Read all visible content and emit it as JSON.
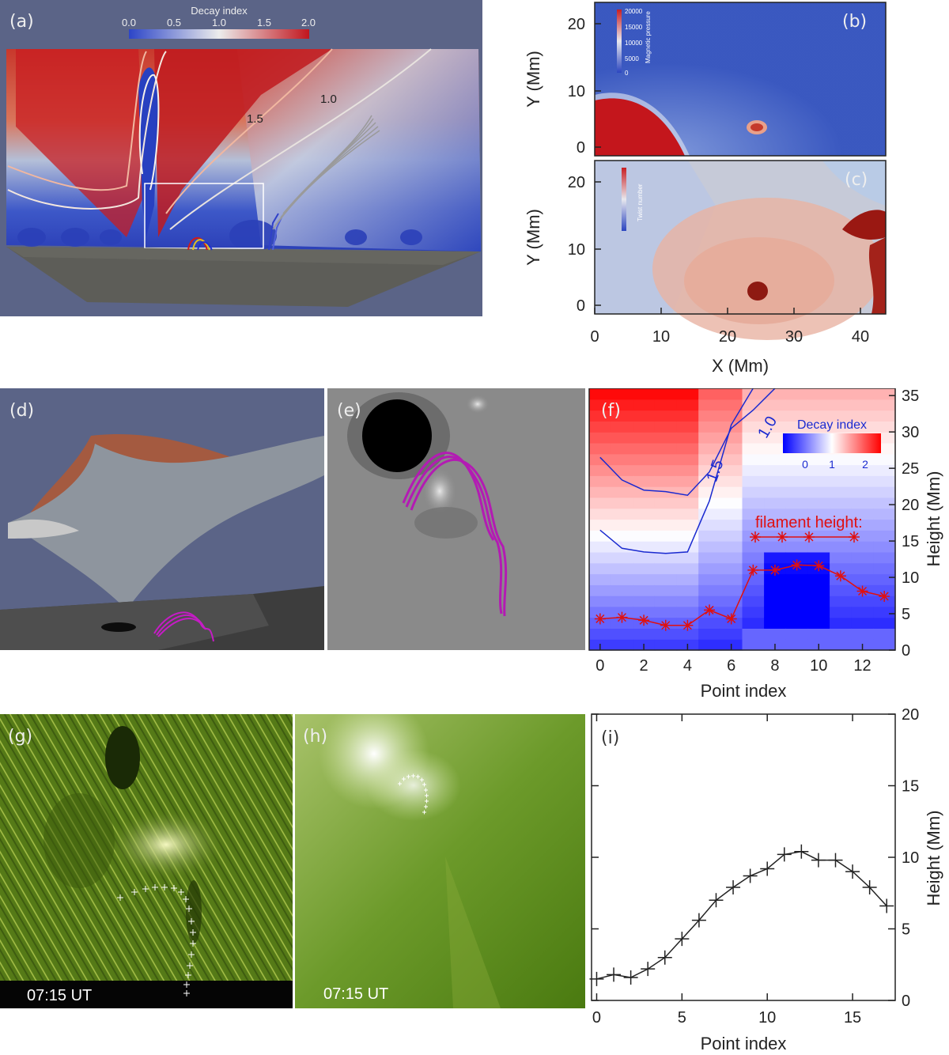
{
  "panels": {
    "a": {
      "label": "(a)",
      "colorbar_title": "Decay index",
      "colorbar_ticks": [
        "0.0",
        "0.5",
        "1.0",
        "1.5",
        "2.0"
      ],
      "contour_labels": [
        "1.5",
        "1.0"
      ]
    },
    "b": {
      "label": "(b)",
      "colorbar_title": "Magnetic pressure",
      "colorbar_ticks": [
        "20000",
        "15000",
        "10000",
        "5000",
        "0"
      ]
    },
    "c": {
      "label": "(c)",
      "colorbar_title": "Twist number"
    },
    "bc_axes": {
      "xlabel": "X (Mm)",
      "ylabel": "Y (Mm)",
      "xticks": [
        "0",
        "10",
        "20",
        "30",
        "40"
      ],
      "yticks_b": [
        "0",
        "10",
        "20"
      ],
      "yticks_c": [
        "0",
        "10",
        "20"
      ]
    },
    "d": {
      "label": "(d)"
    },
    "e": {
      "label": "(e)"
    },
    "f": {
      "label": "(f)",
      "colorbar_title": "Decay index",
      "colorbar_ticks": [
        "0",
        "1",
        "2"
      ],
      "legend_text": "filament height:",
      "contour_labels": [
        "1.5",
        "1.0"
      ],
      "xlabel": "Point index",
      "ylabel": "Height (Mm)"
    },
    "g": {
      "label": "(g)",
      "timestamp": "07:15 UT"
    },
    "h": {
      "label": "(h)",
      "timestamp": "07:15 UT"
    },
    "i": {
      "label": "(i)",
      "xlabel": "Point index",
      "ylabel": "Height (Mm)"
    }
  },
  "chart_data": [
    {
      "panel": "f",
      "type": "line",
      "xlabel": "Point index",
      "ylabel": "Height (Mm)",
      "xlim": [
        -0.5,
        13.5
      ],
      "ylim": [
        0,
        36
      ],
      "xticks": [
        0,
        2,
        4,
        6,
        8,
        10,
        12
      ],
      "yticks": [
        0,
        5,
        10,
        15,
        20,
        25,
        30,
        35
      ],
      "background": "heatmap",
      "series": [
        {
          "name": "filament height",
          "color": "#e01010",
          "marker": "asterisk",
          "x": [
            0,
            1,
            2,
            3,
            4,
            5,
            6,
            7,
            8,
            9,
            10,
            11,
            12,
            13
          ],
          "y": [
            4.3,
            4.5,
            4.1,
            3.4,
            3.4,
            5.5,
            4.3,
            11.0,
            11.0,
            11.7,
            11.6,
            10.2,
            8.1,
            7.4
          ]
        }
      ],
      "contours": [
        {
          "name": "1.5",
          "color": "#1a2ad0",
          "x": [
            0,
            1,
            2,
            3,
            4,
            5,
            6,
            7
          ],
          "y": [
            16.5,
            14.0,
            13.5,
            13.3,
            13.5,
            20.5,
            31.0,
            36.0
          ]
        },
        {
          "name": "1.0",
          "color": "#1a2ad0",
          "x": [
            0,
            1,
            2,
            3,
            4,
            5,
            6,
            7,
            8
          ],
          "y": [
            26.5,
            23.4,
            22.0,
            21.8,
            21.3,
            24.5,
            30.5,
            33.0,
            36.0
          ]
        }
      ]
    },
    {
      "panel": "i",
      "type": "line",
      "xlabel": "Point index",
      "ylabel": "Height (Mm)",
      "xlim": [
        -0.3,
        17.5
      ],
      "ylim": [
        0,
        20
      ],
      "xticks": [
        0,
        5,
        10,
        15
      ],
      "yticks": [
        0,
        5,
        10,
        15,
        20
      ],
      "series": [
        {
          "color": "#222222",
          "marker": "plus",
          "x": [
            0,
            1,
            2,
            3,
            4,
            5,
            6,
            7,
            8,
            9,
            10,
            11,
            12,
            13,
            14,
            15,
            16,
            17
          ],
          "y": [
            1.5,
            1.8,
            1.6,
            2.2,
            3.0,
            4.3,
            5.6,
            7.0,
            7.9,
            8.7,
            9.2,
            10.2,
            10.4,
            9.8,
            9.8,
            9.0,
            7.9,
            6.6
          ]
        }
      ]
    }
  ]
}
